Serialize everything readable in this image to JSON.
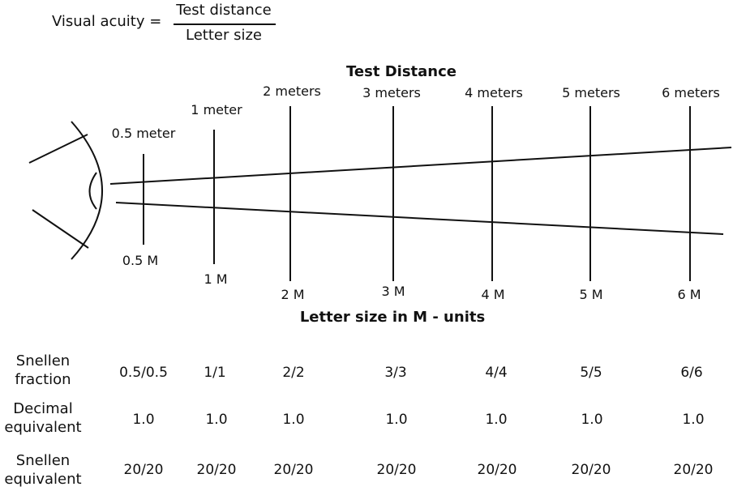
{
  "formula": {
    "left": "Visual acuity =",
    "numerator": "Test distance",
    "denominator": "Letter size"
  },
  "diagram": {
    "distance_heading": "Test Distance",
    "size_heading": "Letter size in M - units",
    "stations": [
      {
        "distance": "0.5 meter",
        "size": "0.5 M"
      },
      {
        "distance": "1 meter",
        "size": "1 M"
      },
      {
        "distance": "2 meters",
        "size": "2 M"
      },
      {
        "distance": "3 meters",
        "size": "3 M"
      },
      {
        "distance": "4 meters",
        "size": "4 M"
      },
      {
        "distance": "5 meters",
        "size": "5 M"
      },
      {
        "distance": "6 meters",
        "size": "6 M"
      }
    ]
  },
  "table": {
    "rows": [
      {
        "label_line1": "Snellen",
        "label_line2": "fraction",
        "values": [
          "0.5/0.5",
          "1/1",
          "2/2",
          "3/3",
          "4/4",
          "5/5",
          "6/6"
        ]
      },
      {
        "label_line1": "Decimal",
        "label_line2": "equivalent",
        "values": [
          "1.0",
          "1.0",
          "1.0",
          "1.0",
          "1.0",
          "1.0",
          "1.0"
        ]
      },
      {
        "label_line1": "Snellen",
        "label_line2": "equivalent",
        "values": [
          "20/20",
          "20/20",
          "20/20",
          "20/20",
          "20/20",
          "20/20",
          "20/20"
        ]
      }
    ]
  }
}
